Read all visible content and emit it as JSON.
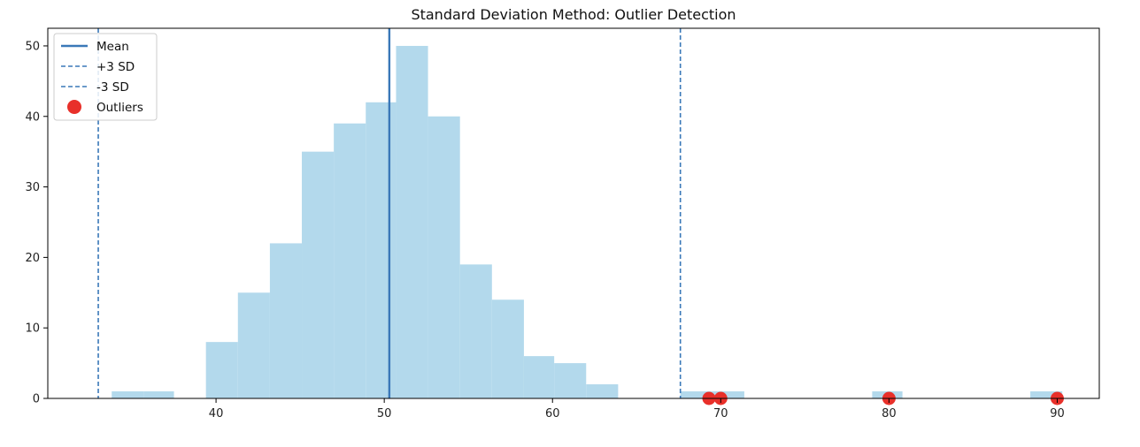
{
  "chart_data": {
    "type": "bar",
    "title": "Standard Deviation Method: Outlier Detection",
    "xlabel": "",
    "ylabel": "",
    "xlim": [
      30.0,
      92.5
    ],
    "ylim": [
      0,
      52.5
    ],
    "xticks": [
      40,
      50,
      60,
      70,
      80,
      90
    ],
    "yticks": [
      0,
      10,
      20,
      30,
      40,
      50
    ],
    "grid": false,
    "legend_position": "top-left",
    "colors": {
      "bars": "#b3d9ec",
      "lines": "#3a78b8",
      "outliers": "#e8302a"
    },
    "histogram": {
      "bins": [
        {
          "x0": 33.8,
          "x1": 35.7,
          "count": 1
        },
        {
          "x0": 35.7,
          "x1": 37.5,
          "count": 1
        },
        {
          "x0": 37.5,
          "x1": 39.4,
          "count": 0
        },
        {
          "x0": 39.4,
          "x1": 41.3,
          "count": 8
        },
        {
          "x0": 41.3,
          "x1": 43.2,
          "count": 15
        },
        {
          "x0": 43.2,
          "x1": 45.1,
          "count": 22
        },
        {
          "x0": 45.1,
          "x1": 47.0,
          "count": 35
        },
        {
          "x0": 47.0,
          "x1": 48.9,
          "count": 39
        },
        {
          "x0": 48.9,
          "x1": 50.7,
          "count": 42
        },
        {
          "x0": 50.7,
          "x1": 52.6,
          "count": 50
        },
        {
          "x0": 52.6,
          "x1": 54.5,
          "count": 40
        },
        {
          "x0": 54.5,
          "x1": 56.4,
          "count": 19
        },
        {
          "x0": 56.4,
          "x1": 58.3,
          "count": 14
        },
        {
          "x0": 58.3,
          "x1": 60.1,
          "count": 6
        },
        {
          "x0": 60.1,
          "x1": 62.0,
          "count": 5
        },
        {
          "x0": 62.0,
          "x1": 63.9,
          "count": 2
        },
        {
          "x0": 67.6,
          "x1": 69.5,
          "count": 1
        },
        {
          "x0": 69.5,
          "x1": 71.4,
          "count": 1
        },
        {
          "x0": 79.0,
          "x1": 80.8,
          "count": 1
        },
        {
          "x0": 88.4,
          "x1": 90.3,
          "count": 1
        }
      ]
    },
    "series": [
      {
        "name": "Mean",
        "type": "vline",
        "x": 50.3
      },
      {
        "name": "+3 SD",
        "type": "vline",
        "x": 67.6
      },
      {
        "name": "-3 SD",
        "type": "vline",
        "x": 33.0
      },
      {
        "name": "Outliers",
        "type": "scatter",
        "points": [
          {
            "x": 69.3,
            "y": 0
          },
          {
            "x": 70.0,
            "y": 0
          },
          {
            "x": 80.0,
            "y": 0
          },
          {
            "x": 90.0,
            "y": 0
          }
        ]
      }
    ]
  }
}
